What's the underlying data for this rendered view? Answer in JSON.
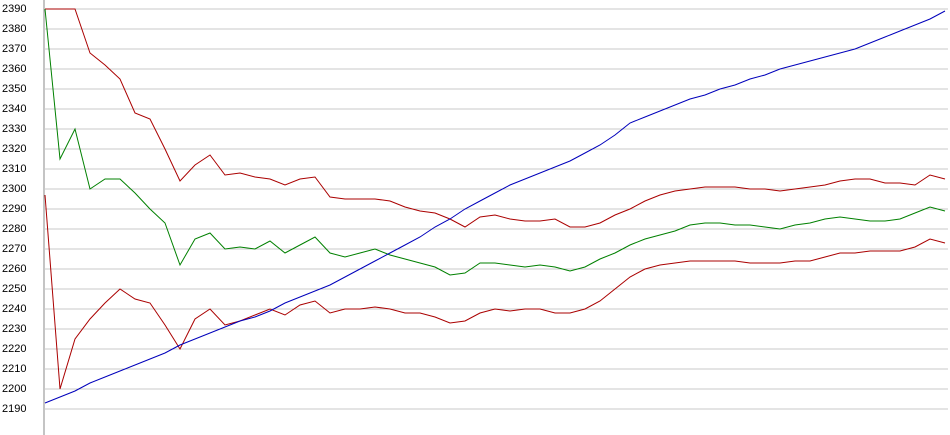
{
  "chart_data": {
    "type": "line",
    "ylim": [
      2190,
      2390
    ],
    "yticks": [
      2190,
      2200,
      2210,
      2220,
      2230,
      2240,
      2250,
      2260,
      2270,
      2280,
      2290,
      2300,
      2310,
      2320,
      2330,
      2340,
      2350,
      2360,
      2370,
      2380,
      2390
    ],
    "grid": true,
    "series": [
      {
        "color": "#aa0000",
        "values": [
          2390,
          2390,
          2390,
          2368,
          2362,
          2355,
          2338,
          2335,
          2320,
          2304,
          2312,
          2317,
          2307,
          2308,
          2306,
          2305,
          2302,
          2305,
          2306,
          2296,
          2295,
          2295,
          2295,
          2294,
          2291,
          2289,
          2288,
          2285,
          2281,
          2286,
          2287,
          2285,
          2284,
          2284,
          2285,
          2281,
          2281,
          2283,
          2287,
          2290,
          2294,
          2297,
          2299,
          2300,
          2301,
          2301,
          2301,
          2300,
          2300,
          2299,
          2300,
          2301,
          2302,
          2304,
          2305,
          2305,
          2303,
          2303,
          2302,
          2307,
          2305
        ]
      },
      {
        "color": "#008000",
        "values": [
          2390,
          2315,
          2330,
          2300,
          2305,
          2305,
          2298,
          2290,
          2283,
          2262,
          2275,
          2278,
          2270,
          2271,
          2270,
          2274,
          2268,
          2272,
          2276,
          2268,
          2266,
          2268,
          2270,
          2267,
          2265,
          2263,
          2261,
          2257,
          2258,
          2263,
          2263,
          2262,
          2261,
          2262,
          2261,
          2259,
          2261,
          2265,
          2268,
          2272,
          2275,
          2277,
          2279,
          2282,
          2283,
          2283,
          2282,
          2282,
          2281,
          2280,
          2282,
          2283,
          2285,
          2286,
          2285,
          2284,
          2284,
          2285,
          2288,
          2291,
          2289
        ]
      },
      {
        "color": "#aa0000",
        "values": [
          2297,
          2200,
          2225,
          2235,
          2243,
          2250,
          2245,
          2243,
          2232,
          2220,
          2235,
          2240,
          2232,
          2234,
          2237,
          2240,
          2237,
          2242,
          2244,
          2238,
          2240,
          2240,
          2241,
          2240,
          2238,
          2238,
          2236,
          2233,
          2234,
          2238,
          2240,
          2239,
          2240,
          2240,
          2238,
          2238,
          2240,
          2244,
          2250,
          2256,
          2260,
          2262,
          2263,
          2264,
          2264,
          2264,
          2264,
          2263,
          2263,
          2263,
          2264,
          2264,
          2266,
          2268,
          2268,
          2269,
          2269,
          2269,
          2271,
          2275,
          2273
        ]
      },
      {
        "color": "#0000bb",
        "values": [
          2193,
          2196,
          2199,
          2203,
          2206,
          2209,
          2212,
          2215,
          2218,
          2222,
          2225,
          2228,
          2231,
          2234,
          2236,
          2239,
          2243,
          2246,
          2249,
          2252,
          2256,
          2260,
          2264,
          2268,
          2272,
          2276,
          2281,
          2285,
          2290,
          2294,
          2298,
          2302,
          2305,
          2308,
          2311,
          2314,
          2318,
          2322,
          2327,
          2333,
          2336,
          2339,
          2342,
          2345,
          2347,
          2350,
          2352,
          2355,
          2357,
          2360,
          2362,
          2364,
          2366,
          2368,
          2370,
          2373,
          2376,
          2379,
          2382,
          2385,
          2389
        ]
      }
    ]
  }
}
